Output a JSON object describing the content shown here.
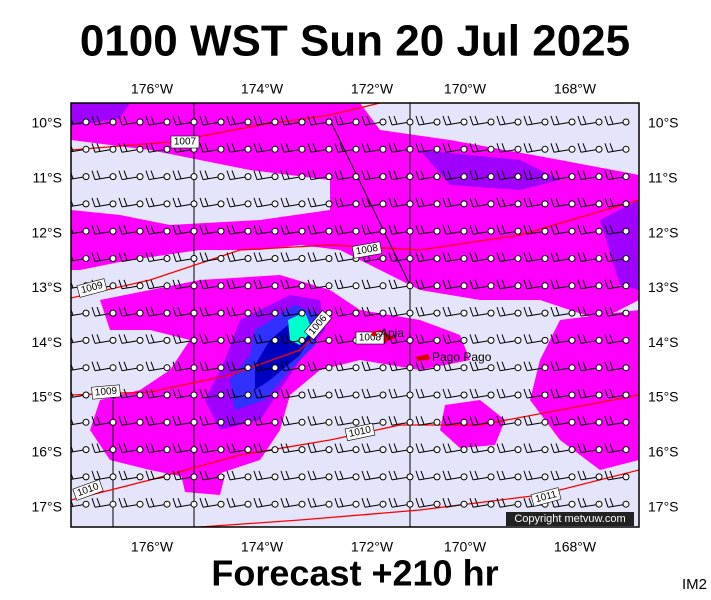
{
  "title": "0100 WST Sun 20 Jul 2025",
  "footer": "Forecast +210 hr",
  "image_id": "IM2",
  "copyright": "Copyright metvuw.com",
  "longitudes": [
    "176°W",
    "174°W",
    "172°W",
    "170°W",
    "168°W"
  ],
  "latitudes": [
    "10°S",
    "11°S",
    "12°S",
    "13°S",
    "14°S",
    "15°S",
    "16°S",
    "17°S"
  ],
  "isobars": [
    {
      "label": "1007"
    },
    {
      "label": "1008"
    },
    {
      "label": "1009"
    },
    {
      "label": "1006"
    },
    {
      "label": "1008"
    },
    {
      "label": "1009"
    },
    {
      "label": "1010"
    },
    {
      "label": "1010"
    },
    {
      "label": "1011"
    }
  ],
  "places": [
    {
      "name": "Apia"
    },
    {
      "name": "Pago Pago"
    }
  ]
}
